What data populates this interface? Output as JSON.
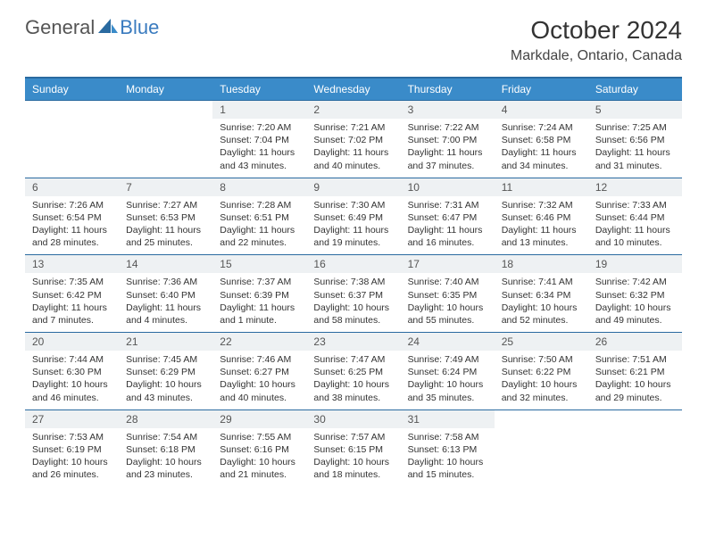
{
  "logo": {
    "text1": "General",
    "text2": "Blue",
    "color1": "#555555",
    "color2": "#3a7bbf",
    "shape_color": "#2a6aa0"
  },
  "title": "October 2024",
  "location": "Markdale, Ontario, Canada",
  "colors": {
    "header_bg": "#3a8bc9",
    "header_border": "#2a6aa0",
    "daynum_bg": "#eef1f3"
  },
  "weekdays": [
    "Sunday",
    "Monday",
    "Tuesday",
    "Wednesday",
    "Thursday",
    "Friday",
    "Saturday"
  ],
  "weeks": [
    [
      null,
      null,
      {
        "n": "1",
        "sr": "7:20 AM",
        "ss": "7:04 PM",
        "dl": "11 hours and 43 minutes."
      },
      {
        "n": "2",
        "sr": "7:21 AM",
        "ss": "7:02 PM",
        "dl": "11 hours and 40 minutes."
      },
      {
        "n": "3",
        "sr": "7:22 AM",
        "ss": "7:00 PM",
        "dl": "11 hours and 37 minutes."
      },
      {
        "n": "4",
        "sr": "7:24 AM",
        "ss": "6:58 PM",
        "dl": "11 hours and 34 minutes."
      },
      {
        "n": "5",
        "sr": "7:25 AM",
        "ss": "6:56 PM",
        "dl": "11 hours and 31 minutes."
      }
    ],
    [
      {
        "n": "6",
        "sr": "7:26 AM",
        "ss": "6:54 PM",
        "dl": "11 hours and 28 minutes."
      },
      {
        "n": "7",
        "sr": "7:27 AM",
        "ss": "6:53 PM",
        "dl": "11 hours and 25 minutes."
      },
      {
        "n": "8",
        "sr": "7:28 AM",
        "ss": "6:51 PM",
        "dl": "11 hours and 22 minutes."
      },
      {
        "n": "9",
        "sr": "7:30 AM",
        "ss": "6:49 PM",
        "dl": "11 hours and 19 minutes."
      },
      {
        "n": "10",
        "sr": "7:31 AM",
        "ss": "6:47 PM",
        "dl": "11 hours and 16 minutes."
      },
      {
        "n": "11",
        "sr": "7:32 AM",
        "ss": "6:46 PM",
        "dl": "11 hours and 13 minutes."
      },
      {
        "n": "12",
        "sr": "7:33 AM",
        "ss": "6:44 PM",
        "dl": "11 hours and 10 minutes."
      }
    ],
    [
      {
        "n": "13",
        "sr": "7:35 AM",
        "ss": "6:42 PM",
        "dl": "11 hours and 7 minutes."
      },
      {
        "n": "14",
        "sr": "7:36 AM",
        "ss": "6:40 PM",
        "dl": "11 hours and 4 minutes."
      },
      {
        "n": "15",
        "sr": "7:37 AM",
        "ss": "6:39 PM",
        "dl": "11 hours and 1 minute."
      },
      {
        "n": "16",
        "sr": "7:38 AM",
        "ss": "6:37 PM",
        "dl": "10 hours and 58 minutes."
      },
      {
        "n": "17",
        "sr": "7:40 AM",
        "ss": "6:35 PM",
        "dl": "10 hours and 55 minutes."
      },
      {
        "n": "18",
        "sr": "7:41 AM",
        "ss": "6:34 PM",
        "dl": "10 hours and 52 minutes."
      },
      {
        "n": "19",
        "sr": "7:42 AM",
        "ss": "6:32 PM",
        "dl": "10 hours and 49 minutes."
      }
    ],
    [
      {
        "n": "20",
        "sr": "7:44 AM",
        "ss": "6:30 PM",
        "dl": "10 hours and 46 minutes."
      },
      {
        "n": "21",
        "sr": "7:45 AM",
        "ss": "6:29 PM",
        "dl": "10 hours and 43 minutes."
      },
      {
        "n": "22",
        "sr": "7:46 AM",
        "ss": "6:27 PM",
        "dl": "10 hours and 40 minutes."
      },
      {
        "n": "23",
        "sr": "7:47 AM",
        "ss": "6:25 PM",
        "dl": "10 hours and 38 minutes."
      },
      {
        "n": "24",
        "sr": "7:49 AM",
        "ss": "6:24 PM",
        "dl": "10 hours and 35 minutes."
      },
      {
        "n": "25",
        "sr": "7:50 AM",
        "ss": "6:22 PM",
        "dl": "10 hours and 32 minutes."
      },
      {
        "n": "26",
        "sr": "7:51 AM",
        "ss": "6:21 PM",
        "dl": "10 hours and 29 minutes."
      }
    ],
    [
      {
        "n": "27",
        "sr": "7:53 AM",
        "ss": "6:19 PM",
        "dl": "10 hours and 26 minutes."
      },
      {
        "n": "28",
        "sr": "7:54 AM",
        "ss": "6:18 PM",
        "dl": "10 hours and 23 minutes."
      },
      {
        "n": "29",
        "sr": "7:55 AM",
        "ss": "6:16 PM",
        "dl": "10 hours and 21 minutes."
      },
      {
        "n": "30",
        "sr": "7:57 AM",
        "ss": "6:15 PM",
        "dl": "10 hours and 18 minutes."
      },
      {
        "n": "31",
        "sr": "7:58 AM",
        "ss": "6:13 PM",
        "dl": "10 hours and 15 minutes."
      },
      null,
      null
    ]
  ],
  "labels": {
    "sunrise": "Sunrise: ",
    "sunset": "Sunset: ",
    "daylight": "Daylight: "
  }
}
